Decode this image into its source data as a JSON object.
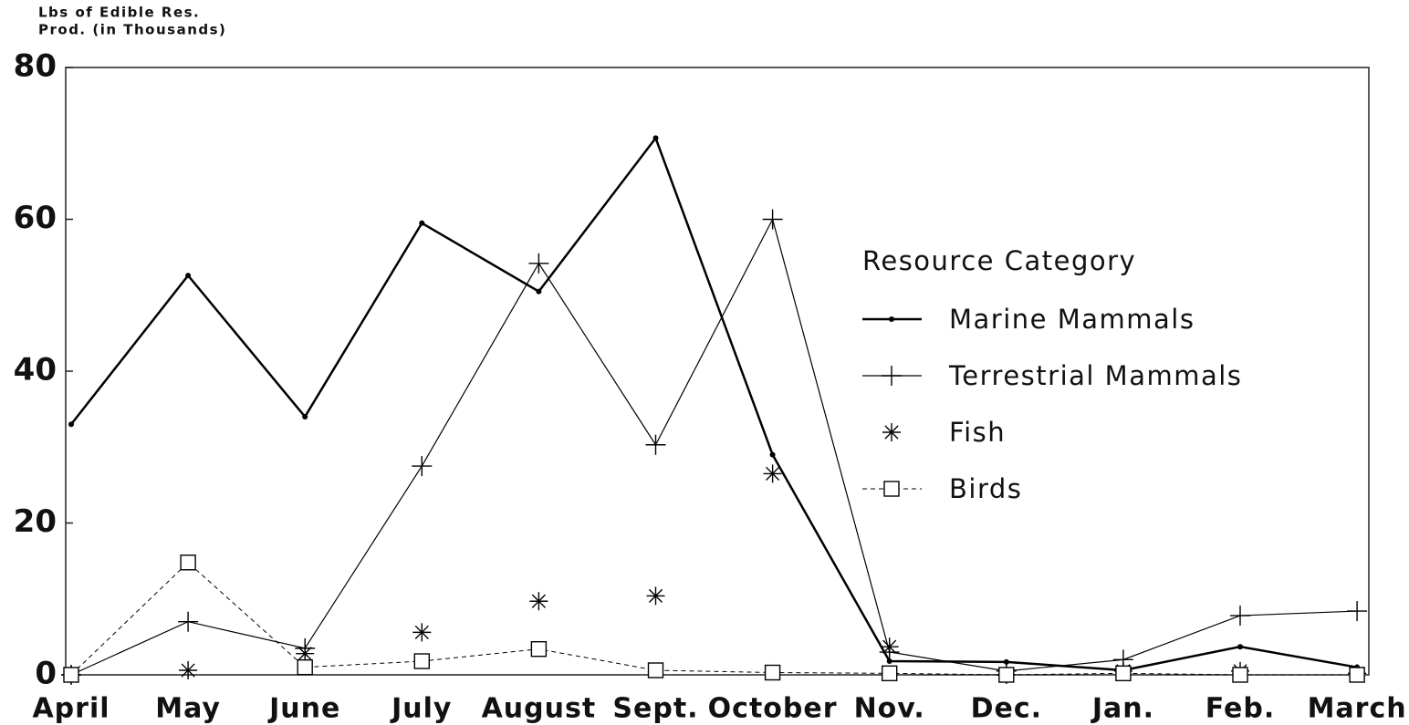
{
  "chart_data": {
    "type": "line",
    "y_label": [
      "Lbs of Edible Res.",
      "Prod. (in Thousands)"
    ],
    "categories": [
      "April",
      "May",
      "June",
      "July",
      "August",
      "Sept.",
      "October",
      "Nov.",
      "Dec.",
      "Jan.",
      "Feb.",
      "March"
    ],
    "ylim": [
      0,
      80
    ],
    "yticks": [
      0,
      20,
      40,
      60,
      80
    ],
    "legend_title": "Resource Category",
    "legend_position": "right",
    "series": [
      {
        "name": "Marine Mammals",
        "color": "#000000",
        "marker": "dot",
        "line_style": "solid",
        "line_width": 2.5,
        "values": [
          33,
          52.6,
          34,
          59.5,
          50.5,
          70.7,
          29,
          1.8,
          1.7,
          0.6,
          3.7,
          1
        ]
      },
      {
        "name": "Terrestrial Mammals",
        "color": "#000000",
        "marker": "plus",
        "line_style": "solid",
        "line_width": 1.2,
        "values": [
          0,
          7,
          3.5,
          27.5,
          54.2,
          30.3,
          60,
          3,
          0.5,
          2,
          7.8,
          8.4
        ]
      },
      {
        "name": "Fish",
        "color": "#000000",
        "marker": "asterisk",
        "line_style": "none",
        "line_width": 1,
        "values": [
          0,
          0.6,
          2.8,
          5.6,
          9.7,
          10.4,
          26.5,
          3.7,
          0,
          0.5,
          0.5,
          0.2
        ]
      },
      {
        "name": "Birds",
        "color": "#000000",
        "marker": "square",
        "line_style": "dashed",
        "line_width": 1,
        "values": [
          0,
          14.8,
          1,
          1.8,
          3.4,
          0.6,
          0.3,
          0.2,
          0,
          0.2,
          0,
          0
        ]
      }
    ]
  }
}
